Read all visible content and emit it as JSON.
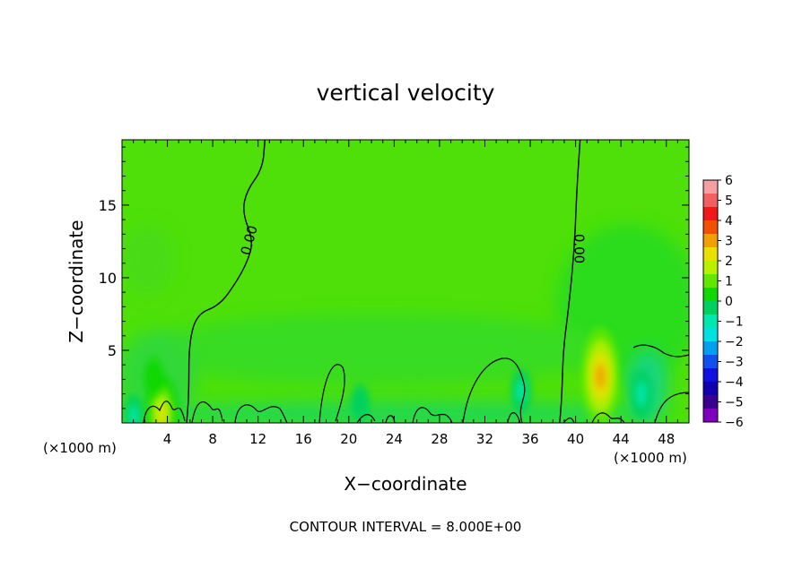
{
  "chart_data": {
    "type": "heatmap",
    "title": "vertical velocity",
    "xlabel": "X−coordinate",
    "ylabel": "Z−coordinate",
    "x_unit_left": "(×1000 m)",
    "x_unit_right": "(×1000 m)",
    "footnote": "CONTOUR INTERVAL = 8.000E+00",
    "xlim": [
      0,
      50
    ],
    "ylim": [
      0,
      19.5
    ],
    "x_ticks": [
      4,
      8,
      12,
      16,
      20,
      24,
      28,
      32,
      36,
      40,
      44,
      48
    ],
    "x_tick_labels": [
      "4",
      "8",
      "12",
      "16",
      "20",
      "24",
      "28",
      "32",
      "36",
      "40",
      "44",
      "48"
    ],
    "y_ticks": [
      5,
      10,
      15
    ],
    "y_tick_labels": [
      "5",
      "10",
      "15"
    ],
    "colorbar": {
      "min": -6,
      "max": 6,
      "labels": [
        "6",
        "5",
        "4",
        "3",
        "2",
        "1",
        "0",
        "−1",
        "−2",
        "−3",
        "−4",
        "−5",
        "−6"
      ],
      "colors": [
        "#f4a0a0",
        "#f06060",
        "#f01818",
        "#f05000",
        "#f0a000",
        "#e8e000",
        "#b8f000",
        "#60e800",
        "#10d800",
        "#00d060",
        "#00e8b0",
        "#00e0e0",
        "#00a0f0",
        "#1050f0",
        "#1010e0",
        "#1000b0",
        "#3a0090",
        "#8000c0"
      ]
    },
    "contour_label": "0.00",
    "contour_lines": [
      {
        "label": "0.00",
        "points": [
          [
            12.6,
            19.5
          ],
          [
            12.4,
            17.5
          ],
          [
            11.0,
            16.0
          ],
          [
            10.6,
            14.5
          ],
          [
            11.6,
            12.5
          ],
          [
            11.0,
            11.0
          ],
          [
            10.0,
            9.6
          ],
          [
            8.6,
            8.1
          ],
          [
            6.6,
            7.5
          ],
          [
            5.9,
            5.5
          ],
          [
            5.9,
            2.0
          ],
          [
            5.7,
            0.0
          ]
        ]
      },
      {
        "label": "0.00",
        "points": [
          [
            40.4,
            19.5
          ],
          [
            40.1,
            16.0
          ],
          [
            39.9,
            12.0
          ],
          [
            39.4,
            8.0
          ],
          [
            38.9,
            5.0
          ],
          [
            38.8,
            2.0
          ],
          [
            38.6,
            0.0
          ]
        ]
      }
    ],
    "anomalies": [
      {
        "x": 42.2,
        "z": 3.2,
        "w": 3.4
      },
      {
        "x": 3.5,
        "z": 0.6,
        "w": 2.5
      },
      {
        "x": 45.8,
        "z": 2.0,
        "w": -1.2
      },
      {
        "x": 35.2,
        "z": 2.2,
        "w": -0.9
      },
      {
        "x": 21.0,
        "z": 1.4,
        "w": -0.6
      },
      {
        "x": 2.8,
        "z": 3.2,
        "w": 0.6
      },
      {
        "x": 1.0,
        "z": 0.5,
        "w": -0.8
      }
    ]
  }
}
